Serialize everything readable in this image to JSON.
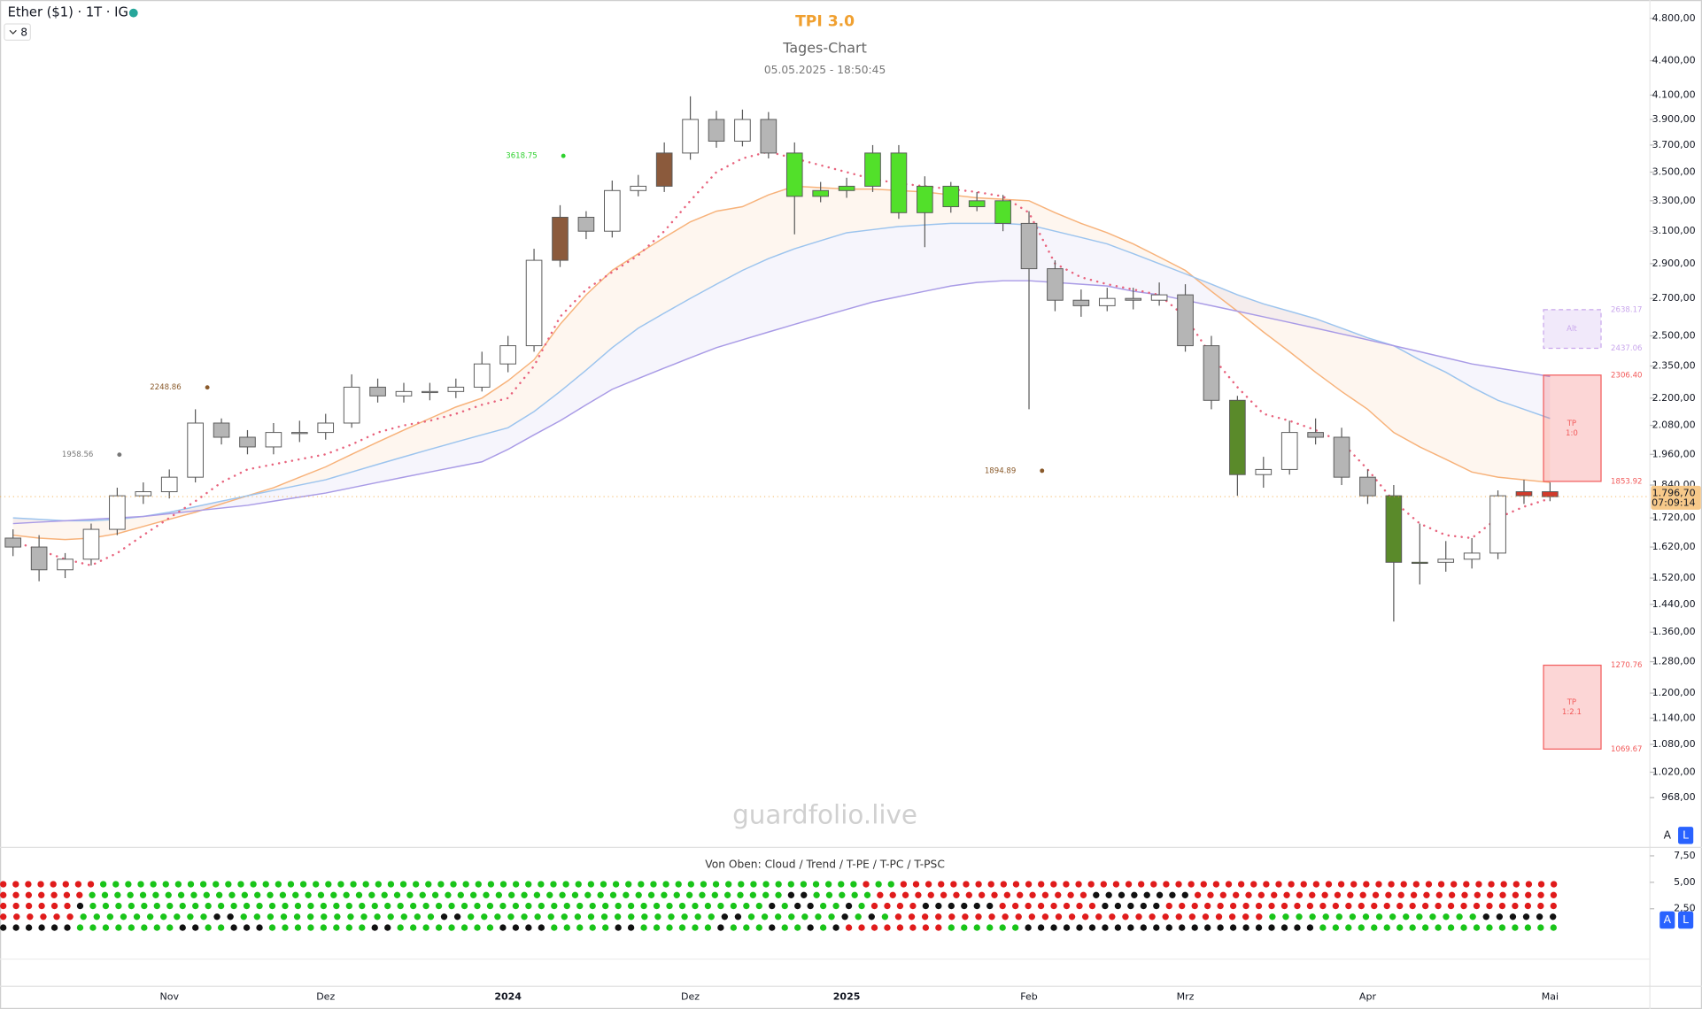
{
  "header": {
    "symbol": "Ether ($1) · 1T · IG",
    "collapse": 8
  },
  "chart_data": [
    {
      "type": "candlestick",
      "title": "TPI 3.0",
      "subtitle": "Tages-Chart",
      "timestamp": "05.05.2025 - 18:50:45",
      "watermark": "guardfolio.live",
      "categories": [
        null,
        null,
        null,
        null,
        null,
        null,
        "Nov",
        null,
        null,
        null,
        null,
        null,
        "Dez",
        null,
        null,
        null,
        null,
        null,
        null,
        "2024",
        null,
        null,
        null,
        null,
        null,
        null,
        "Dez",
        null,
        null,
        null,
        null,
        null,
        "2025",
        null,
        null,
        null,
        null,
        null,
        null,
        "Feb",
        null,
        null,
        null,
        null,
        null,
        "Mrz",
        null,
        null,
        null,
        null,
        null,
        null,
        "Apr",
        null,
        null,
        null,
        null,
        null,
        null,
        "Mai"
      ],
      "open": [
        1650,
        1620,
        1546,
        1580,
        1680,
        1800,
        1815,
        1870,
        2090,
        2030,
        1990,
        2050,
        2050,
        2090,
        2250,
        2210,
        2230,
        2230,
        2250,
        2360,
        2450,
        2920,
        3190,
        3100,
        3370,
        3400,
        3640,
        3900,
        3730,
        3900,
        3640,
        3330,
        3370,
        3400,
        3640,
        3220,
        3400,
        3260,
        3300,
        3150,
        2870,
        2690,
        2660,
        2700,
        2690,
        2720,
        2450,
        2190,
        1880,
        1900,
        2050,
        2030,
        1870,
        1800,
        1570,
        1570,
        1580,
        1600,
        1800,
        1815
      ],
      "high": [
        1680,
        1660,
        1600,
        1700,
        1830,
        1850,
        1900,
        2150,
        2110,
        2060,
        2090,
        2100,
        2130,
        2310,
        2290,
        2270,
        2270,
        2290,
        2420,
        2500,
        2990,
        3270,
        3230,
        3440,
        3480,
        3720,
        4090,
        3970,
        3980,
        3960,
        3720,
        3430,
        3460,
        3700,
        3700,
        3470,
        3430,
        3360,
        3340,
        3230,
        2920,
        2750,
        2760,
        2760,
        2790,
        2780,
        2500,
        2210,
        1950,
        2100,
        2110,
        2070,
        1900,
        1840,
        1700,
        1640,
        1650,
        1820,
        1860,
        1850
      ],
      "low": [
        1590,
        1510,
        1520,
        1560,
        1660,
        1770,
        1790,
        1850,
        2000,
        1960,
        1960,
        2010,
        2020,
        2070,
        2180,
        2180,
        2190,
        2200,
        2230,
        2320,
        2420,
        2880,
        3050,
        3060,
        3330,
        3360,
        3590,
        3680,
        3690,
        3600,
        3080,
        3290,
        3320,
        3360,
        3180,
        3000,
        3220,
        3230,
        3100,
        2150,
        2630,
        2600,
        2630,
        2640,
        2660,
        2420,
        2150,
        1800,
        1830,
        1880,
        2000,
        1840,
        1770,
        1390,
        1500,
        1540,
        1550,
        1580,
        1770,
        1780
      ],
      "close": [
        1620,
        1546,
        1580,
        1680,
        1800,
        1815,
        1870,
        2090,
        2030,
        1990,
        2050,
        2050,
        2090,
        2250,
        2210,
        2230,
        2230,
        2250,
        2360,
        2450,
        2920,
        3190,
        3100,
        3370,
        3400,
        3640,
        3900,
        3730,
        3900,
        3640,
        3330,
        3370,
        3400,
        3640,
        3220,
        3400,
        3260,
        3300,
        3150,
        2870,
        2690,
        2660,
        2700,
        2690,
        2720,
        2450,
        2190,
        1880,
        1900,
        2050,
        2030,
        1870,
        1800,
        1570,
        1570,
        1580,
        1600,
        1800,
        1815,
        1796.7
      ],
      "colors": [
        "#b5b5b5",
        "#b5b5b5",
        "#ffffff",
        "#ffffff",
        "#ffffff",
        "#ffffff",
        "#ffffff",
        "#ffffff",
        "#b5b5b5",
        "#b5b5b5",
        "#ffffff",
        "#ffffff",
        "#ffffff",
        "#ffffff",
        "#b5b5b5",
        "#ffffff",
        "#ffffff",
        "#ffffff",
        "#ffffff",
        "#ffffff",
        "#ffffff",
        "#8b5a3c",
        "#b5b5b5",
        "#ffffff",
        "#ffffff",
        "#8b5a3c",
        "#ffffff",
        "#b5b5b5",
        "#ffffff",
        "#b5b5b5",
        "#52e02a",
        "#52e02a",
        "#52e02a",
        "#52e02a",
        "#52e02a",
        "#52e02a",
        "#52e02a",
        "#52e02a",
        "#52e02a",
        "#b5b5b5",
        "#b5b5b5",
        "#b5b5b5",
        "#ffffff",
        "#b5b5b5",
        "#ffffff",
        "#b5b5b5",
        "#b5b5b5",
        "#5a8a2a",
        "#ffffff",
        "#ffffff",
        "#b5b5b5",
        "#b5b5b5",
        "#b5b5b5",
        "#5a8a2a",
        "#5a8a2a",
        "#ffffff",
        "#ffffff",
        "#ffffff",
        "#d23b2b",
        "#d23b2b"
      ],
      "lines": [
        {
          "color": "#f7b27a",
          "values": [
            1660,
            1650,
            1645,
            1650,
            1665,
            1690,
            1715,
            1740,
            1770,
            1800,
            1830,
            1870,
            1910,
            1960,
            2010,
            2060,
            2110,
            2160,
            2200,
            2280,
            2380,
            2560,
            2720,
            2860,
            2960,
            3060,
            3160,
            3230,
            3260,
            3340,
            3400,
            3390,
            3380,
            3380,
            3370,
            3360,
            3340,
            3320,
            3310,
            3300,
            3220,
            3150,
            3090,
            3020,
            2940,
            2860,
            2740,
            2630,
            2520,
            2420,
            2320,
            2230,
            2150,
            2050,
            1990,
            1940,
            1890,
            1870,
            1860,
            1850
          ]
        },
        {
          "color": "#9cc4ee",
          "values": [
            1720,
            1715,
            1710,
            1710,
            1715,
            1725,
            1740,
            1760,
            1780,
            1800,
            1820,
            1840,
            1860,
            1890,
            1920,
            1950,
            1980,
            2010,
            2040,
            2070,
            2140,
            2230,
            2330,
            2440,
            2540,
            2620,
            2700,
            2780,
            2860,
            2930,
            2990,
            3040,
            3090,
            3110,
            3130,
            3140,
            3150,
            3150,
            3150,
            3140,
            3100,
            3060,
            3020,
            2960,
            2900,
            2840,
            2780,
            2720,
            2670,
            2630,
            2590,
            2540,
            2490,
            2450,
            2380,
            2320,
            2250,
            2190,
            2150,
            2110
          ]
        },
        {
          "color": "#a99be6",
          "values": [
            1700,
            1705,
            1710,
            1715,
            1720,
            1725,
            1735,
            1745,
            1755,
            1765,
            1780,
            1795,
            1810,
            1830,
            1850,
            1870,
            1890,
            1910,
            1930,
            1980,
            2040,
            2100,
            2170,
            2240,
            2290,
            2340,
            2390,
            2440,
            2480,
            2520,
            2560,
            2600,
            2640,
            2680,
            2710,
            2740,
            2770,
            2790,
            2800,
            2800,
            2790,
            2780,
            2770,
            2740,
            2720,
            2690,
            2660,
            2630,
            2600,
            2570,
            2540,
            2510,
            2480,
            2450,
            2420,
            2390,
            2360,
            2340,
            2320,
            2300
          ]
        },
        {
          "color": "#e8637d",
          "dashed": true,
          "values": [
            1640,
            1610,
            1580,
            1560,
            1600,
            1660,
            1720,
            1780,
            1850,
            1900,
            1920,
            1940,
            1960,
            2000,
            2050,
            2080,
            2100,
            2130,
            2170,
            2200,
            2350,
            2600,
            2750,
            2850,
            2950,
            3100,
            3300,
            3500,
            3600,
            3650,
            3600,
            3550,
            3500,
            3450,
            3420,
            3400,
            3380,
            3360,
            3330,
            3220,
            2900,
            2820,
            2780,
            2750,
            2720,
            2600,
            2400,
            2250,
            2130,
            2100,
            2060,
            2010,
            1900,
            1780,
            1700,
            1660,
            1650,
            1720,
            1760,
            1790
          ]
        }
      ],
      "ylim": [
        876,
        4985
      ],
      "log_scale": true,
      "yticks": [
        {
          "value": 4800,
          "label": "4.800,00"
        },
        {
          "value": 4400,
          "label": "4.400,00"
        },
        {
          "value": 4100,
          "label": "4.100,00"
        },
        {
          "value": 3900,
          "label": "3.900,00"
        },
        {
          "value": 3700,
          "label": "3.700,00"
        },
        {
          "value": 3500,
          "label": "3.500,00"
        },
        {
          "value": 3300,
          "label": "3.300,00"
        },
        {
          "value": 3100,
          "label": "3.100,00"
        },
        {
          "value": 2900,
          "label": "2.900,00"
        },
        {
          "value": 2700,
          "label": "2.700,00"
        },
        {
          "value": 2500,
          "label": "2.500,00"
        },
        {
          "value": 2350,
          "label": "2.350,00"
        },
        {
          "value": 2200,
          "label": "2.200,00"
        },
        {
          "value": 2080,
          "label": "2.080,00"
        },
        {
          "value": 1960,
          "label": "1.960,00"
        },
        {
          "value": 1840,
          "label": "1.840,00"
        },
        {
          "value": 1720,
          "label": "1.720,00"
        },
        {
          "value": 1620,
          "label": "1.620,00"
        },
        {
          "value": 1520,
          "label": "1.520,00"
        },
        {
          "value": 1440,
          "label": "1.440,00"
        },
        {
          "value": 1360,
          "label": "1.360,00"
        },
        {
          "value": 1280,
          "label": "1.280,00"
        },
        {
          "value": 1200,
          "label": "1.200,00"
        },
        {
          "value": 1140,
          "label": "1.140,00"
        },
        {
          "value": 1080,
          "label": "1.080,00"
        },
        {
          "value": 1020,
          "label": "1.020,00"
        },
        {
          "value": 968,
          "label": "968,00"
        }
      ],
      "annotations": [
        {
          "value": 3618.75,
          "color": "#2fd12f"
        },
        {
          "value": 2248.86,
          "color": "#8a5a2b"
        },
        {
          "value": 1958.56,
          "color": "#777777"
        },
        {
          "value": 1894.89,
          "color": "#8a5a2b"
        }
      ],
      "boxes": [
        {
          "label": [
            "Alt"
          ],
          "top": 2638.17,
          "bottom": 2437.06,
          "color": "#c9a7ec"
        },
        {
          "label": [
            "TP",
            "1:0"
          ],
          "top": {
            "value": 2306.4,
            "label": "2306.40"
          },
          "bottom": 1853.92,
          "color": "#f25b5b"
        },
        {
          "label": [
            "TP",
            "1:2.1"
          ],
          "top": 1270.76,
          "bottom": 1069.67,
          "color": "#f25b5b"
        }
      ],
      "last_price": {
        "value": 1796.7,
        "label": "1.796,70",
        "countdown": "07:09:14"
      },
      "scale_buttons": [
        "A",
        "L"
      ]
    },
    {
      "type": "dot-matrix",
      "title": "Von Oben: Cloud / Trend / T-PE / T-PC / T-PSC",
      "ylim": [
        0,
        8.2
      ],
      "yticks": [
        {
          "value": 7.5,
          "label": "7,50"
        },
        {
          "value": 5,
          "label": "5,00"
        },
        {
          "value": 2.5,
          "label": "2,50"
        }
      ],
      "palette": {
        "g": "#19c419",
        "r": "#e01b1b",
        "k": "#111111"
      },
      "rows": [
        "rrrrrrrrgggggggggggggggggggggggggggggggggggggggggggggggggggggggggggggrggrrrrrrrrrrrrrrrrrrrrrrrrrrrrrrrrrrrrrrrrrrrrrrrrrrrrr",
        "rrrrrrrgggggggggggggggggggggggggggggggggggggggggggggggggggggggkkgggggrrrrrrrrrrrrrrrrrkkkkkkkkrrrrrrrrrrrrrrrrrrrrrrrrrrrrr",
        "rrrrrrkgggggggggggggggggggggggggggggggggggggggggggggggggggggkgkkggkgrrrrkkkkkkrrrrrrrrkkkkkrrrrrrrrrrrrrrrrrrrrrrrrrrrrrrr",
        "rrrrrrggggggggggkkgggggggggggggggkkgggggggggggggggggggkkgggggggkgkgrrrrrrrrrrrrrrrrrrrrrrrrrrrrggggggggggggggggkkkkkk",
        "kkkkkkggggggggkkggkkkggggggggkkggggggggkkkkgggggkkggggggkgggkggkgkrrrrrrrrggggggkkkkkkkkkkkkkkkkkkkkkkkggggggggggggggggggg"
      ],
      "scale_buttons": [
        "A",
        "L"
      ]
    }
  ]
}
